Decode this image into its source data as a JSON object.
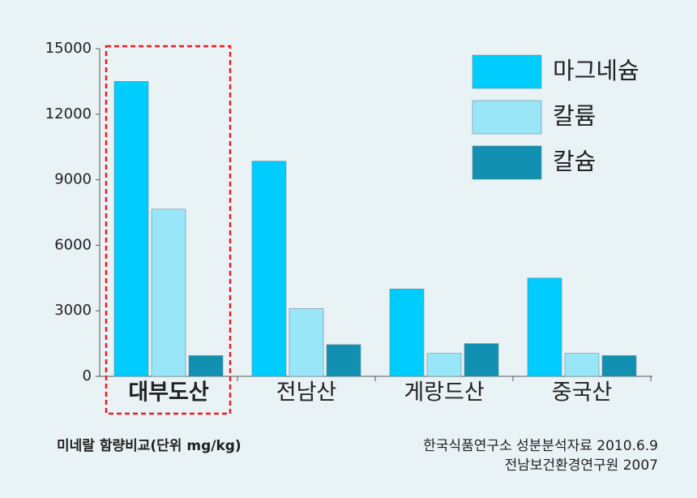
{
  "chart_data": {
    "type": "bar",
    "categories": [
      "대부도산",
      "전남산",
      "게랑드산",
      "중국산"
    ],
    "series": [
      {
        "name": "마그네슘",
        "color": "#00cdfd",
        "values": [
          13500,
          9850,
          4000,
          4500
        ]
      },
      {
        "name": "칼륨",
        "color": "#9ae6f9",
        "values": [
          7650,
          3100,
          1050,
          1050
        ]
      },
      {
        "name": "칼슘",
        "color": "#1190b1",
        "values": [
          950,
          1450,
          1500,
          950
        ]
      }
    ],
    "ylim": [
      0,
      15000
    ],
    "yticks": [
      0,
      3000,
      6000,
      9000,
      12000,
      15000
    ],
    "note": "미네랄 함량비교(단위 mg/kg)",
    "source": [
      "한국식품연구소 성분분석자료 2010.6.9",
      "전남보건환경연구원 2007"
    ]
  }
}
